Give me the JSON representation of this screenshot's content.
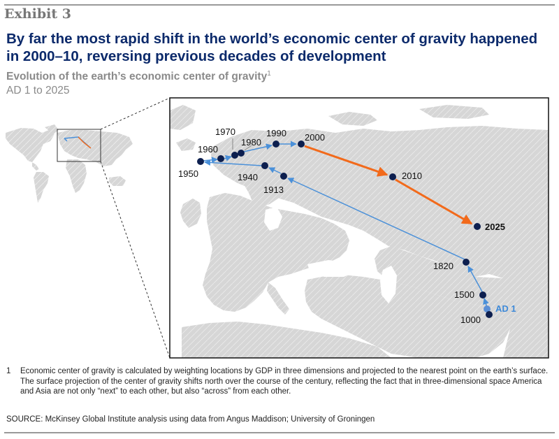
{
  "exhibit": "Exhibit 3",
  "headline": "By far the most rapid shift in the world’s economic center of gravity happened in 2000–10, reversing previous decades of development",
  "subtitle": "Evolution of the earth’s economic center of gravity",
  "subtitle_sup": "1",
  "date_range": "AD 1 to 2025",
  "colors": {
    "historic_path": "#4a90d9",
    "recent_path": "#f26a1b",
    "point": "#0d1f4f",
    "ad1_point": "#5b8fd6",
    "land": "#d6d6d6",
    "border": "#ffffff",
    "headline": "#0c2a6b"
  },
  "points": [
    {
      "label": "AD 1",
      "year": 1
    },
    {
      "label": "1000",
      "year": 1000
    },
    {
      "label": "1500",
      "year": 1500
    },
    {
      "label": "1820",
      "year": 1820
    },
    {
      "label": "1913",
      "year": 1913
    },
    {
      "label": "1940",
      "year": 1940
    },
    {
      "label": "1950",
      "year": 1950
    },
    {
      "label": "1960",
      "year": 1960
    },
    {
      "label": "1970",
      "year": 1970
    },
    {
      "label": "1980",
      "year": 1980
    },
    {
      "label": "1990",
      "year": 1990
    },
    {
      "label": "2000",
      "year": 2000
    },
    {
      "label": "2010",
      "year": 2010
    },
    {
      "label": "2025",
      "year": 2025
    }
  ],
  "footnote_number": "1",
  "footnote": "Economic center of gravity is calculated by weighting locations by GDP in three dimensions and projected to the nearest point on the earth’s surface. The surface projection of the center of gravity shifts north over the course of the century, reflecting the fact that in three-dimensional space America and Asia are not only “next” to each other, but also “across” from each other.",
  "source": "SOURCE: McKinsey Global Institute analysis using data from Angus Maddison; University of Groningen"
}
